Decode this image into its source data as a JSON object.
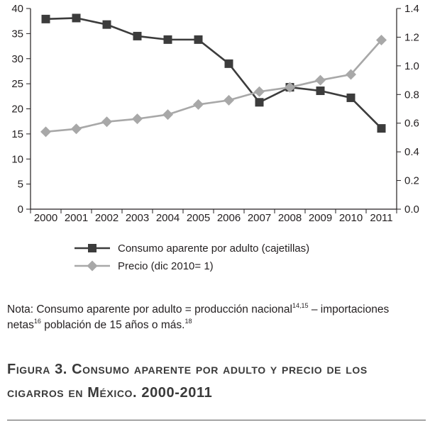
{
  "chart_data": {
    "type": "line",
    "categories": [
      "2000",
      "2001",
      "2002",
      "2003",
      "2004",
      "2005",
      "2006",
      "2007",
      "2008",
      "2009",
      "2010",
      "2011"
    ],
    "series": [
      {
        "name": "Consumo aparente por adulto (cajetillas)",
        "axis": "left",
        "marker": "square",
        "color": "#3c3c3c",
        "values": [
          37.9,
          38.1,
          36.8,
          34.5,
          33.8,
          33.8,
          29.0,
          21.3,
          24.3,
          23.6,
          22.2,
          16.1
        ]
      },
      {
        "name": "Precio (dic 2010= 1)",
        "axis": "right",
        "marker": "diamond",
        "color": "#a8a8a8",
        "values": [
          0.54,
          0.56,
          0.61,
          0.63,
          0.66,
          0.73,
          0.76,
          0.82,
          0.85,
          0.9,
          0.94,
          1.18
        ]
      }
    ],
    "y_left": {
      "min": 0,
      "max": 40,
      "ticks": [
        "0",
        "5",
        "10",
        "15",
        "20",
        "25",
        "30",
        "35",
        "40"
      ]
    },
    "y_right": {
      "min": 0,
      "max": 1.4,
      "ticks": [
        "0.0",
        "0.2",
        "0.4",
        "0.6",
        "0.8",
        "1.0",
        "1.2",
        "1.4"
      ]
    },
    "grid": false,
    "legend_position": "bottom"
  },
  "note": {
    "p1": "Nota: Consumo aparente por adulto = producción nacional",
    "s1": "14,15",
    "p2": " – importaciones netas",
    "s2": "16",
    "p3": " población de 15 años o más.",
    "s3": "18"
  },
  "caption": "Figura 3. Consumo aparente por adulto y precio de los cigarros en México. 2000-2011"
}
